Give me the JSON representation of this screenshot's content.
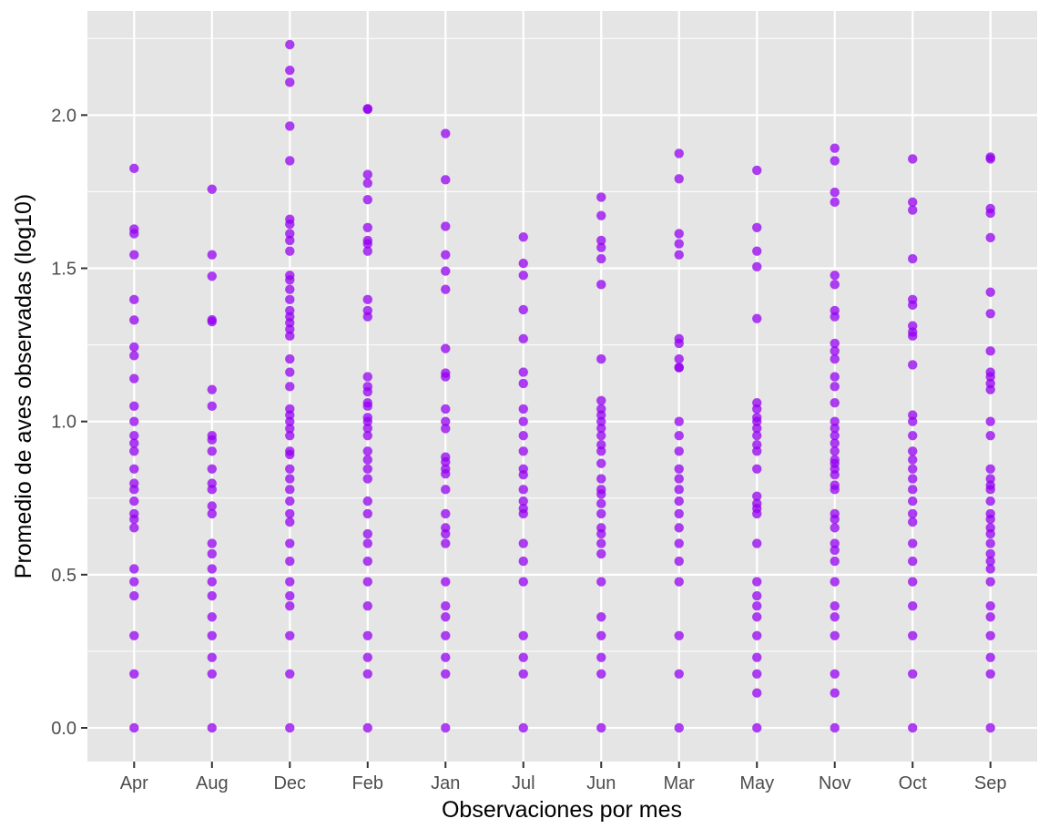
{
  "chart_data": {
    "type": "scatter",
    "title": "",
    "xlabel": "Observaciones por mes",
    "ylabel": "Promedio de aves observadas (log10)",
    "ylim": [
      -0.11,
      2.34
    ],
    "yticks": [
      "0.0",
      "0.5",
      "1.0",
      "1.5",
      "2.0"
    ],
    "categories": [
      "Apr",
      "Aug",
      "Dec",
      "Feb",
      "Jan",
      "Jul",
      "Jun",
      "Mar",
      "May",
      "Nov",
      "Oct",
      "Sep"
    ],
    "grid": true,
    "legend": "none",
    "colors": {
      "point": "#9400f0",
      "panel": "#e5e5e5",
      "grid": "#ffffff",
      "tick_text": "#4d4d4d"
    },
    "series": [
      {
        "points": [
          {
            "x": "Apr",
            "y": [
              0,
              0.176,
              0.301,
              0.431,
              0.477,
              0.519,
              0.653,
              0.681,
              0.699,
              0.74,
              0.778,
              0.798,
              0.845,
              0.903,
              0.929,
              0.954,
              1.0,
              1.05,
              1.14,
              1.215,
              1.243,
              1.331,
              1.398,
              1.544,
              1.613,
              1.628,
              1.826
            ]
          },
          {
            "x": "Aug",
            "y": [
              0,
              0.176,
              0.23,
              0.301,
              0.362,
              0.431,
              0.477,
              0.519,
              0.568,
              0.602,
              0.699,
              0.724,
              0.778,
              0.798,
              0.845,
              0.903,
              0.94,
              0.954,
              1.05,
              1.104,
              1.326,
              1.332,
              1.474,
              1.544,
              1.758
            ]
          },
          {
            "x": "Dec",
            "y": [
              0,
              0.176,
              0.301,
              0.398,
              0.431,
              0.477,
              0.544,
              0.602,
              0.672,
              0.699,
              0.74,
              0.778,
              0.813,
              0.845,
              0.892,
              0.903,
              0.954,
              0.977,
              1.0,
              1.021,
              1.041,
              1.114,
              1.161,
              1.204,
              1.279,
              1.301,
              1.322,
              1.342,
              1.362,
              1.398,
              1.431,
              1.462,
              1.477,
              1.556,
              1.591,
              1.613,
              1.644,
              1.66,
              1.851,
              1.964,
              2.107,
              2.146,
              2.23
            ]
          },
          {
            "x": "Feb",
            "y": [
              0,
              0.176,
              0.23,
              0.301,
              0.398,
              0.477,
              0.544,
              0.602,
              0.633,
              0.699,
              0.74,
              0.813,
              0.845,
              0.875,
              0.903,
              0.954,
              0.978,
              1.0,
              1.013,
              1.05,
              1.061,
              1.097,
              1.114,
              1.146,
              1.342,
              1.362,
              1.398,
              1.556,
              1.58,
              1.591,
              1.633,
              1.724,
              1.778,
              1.806,
              2.019,
              2.021
            ]
          },
          {
            "x": "Jan",
            "y": [
              0,
              0.176,
              0.23,
              0.301,
              0.362,
              0.398,
              0.477,
              0.602,
              0.633,
              0.653,
              0.699,
              0.778,
              0.829,
              0.845,
              0.868,
              0.884,
              0.977,
              1.0,
              1.041,
              1.146,
              1.158,
              1.238,
              1.431,
              1.491,
              1.544,
              1.637,
              1.789,
              1.94
            ]
          },
          {
            "x": "Jul",
            "y": [
              0,
              0.176,
              0.23,
              0.301,
              0.477,
              0.544,
              0.602,
              0.699,
              0.716,
              0.74,
              0.778,
              0.826,
              0.845,
              0.903,
              0.954,
              1.0,
              1.041,
              1.124,
              1.161,
              1.27,
              1.365,
              1.477,
              1.516,
              1.602
            ]
          },
          {
            "x": "Jun",
            "y": [
              0,
              0.176,
              0.23,
              0.301,
              0.362,
              0.477,
              0.568,
              0.602,
              0.633,
              0.653,
              0.699,
              0.732,
              0.763,
              0.778,
              0.813,
              0.863,
              0.903,
              0.924,
              0.954,
              0.978,
              1.0,
              1.021,
              1.041,
              1.068,
              1.204,
              1.447,
              1.531,
              1.568,
              1.591,
              1.672,
              1.732
            ]
          },
          {
            "x": "Mar",
            "y": [
              0,
              0.176,
              0.301,
              0.477,
              0.544,
              0.602,
              0.653,
              0.699,
              0.74,
              0.778,
              0.813,
              0.845,
              0.903,
              0.954,
              1.0,
              1.176,
              1.176,
              1.204,
              1.255,
              1.27,
              1.544,
              1.58,
              1.613,
              1.792,
              1.875
            ]
          },
          {
            "x": "May",
            "y": [
              0,
              0.114,
              0.176,
              0.23,
              0.301,
              0.362,
              0.398,
              0.431,
              0.477,
              0.602,
              0.699,
              0.716,
              0.732,
              0.756,
              0.845,
              0.903,
              0.924,
              0.954,
              0.978,
              1.0,
              1.013,
              1.041,
              1.061,
              1.336,
              1.505,
              1.556,
              1.633,
              1.82
            ]
          },
          {
            "x": "Nov",
            "y": [
              0,
              0.114,
              0.176,
              0.301,
              0.362,
              0.398,
              0.477,
              0.544,
              0.58,
              0.602,
              0.653,
              0.681,
              0.699,
              0.778,
              0.792,
              0.826,
              0.845,
              0.863,
              0.875,
              0.903,
              0.929,
              0.954,
              0.978,
              1.0,
              1.061,
              1.114,
              1.146,
              1.204,
              1.23,
              1.255,
              1.342,
              1.362,
              1.447,
              1.477,
              1.716,
              1.748,
              1.851,
              1.892
            ]
          },
          {
            "x": "Oct",
            "y": [
              0,
              0.176,
              0.301,
              0.398,
              0.477,
              0.544,
              0.602,
              0.672,
              0.699,
              0.74,
              0.778,
              0.813,
              0.845,
              0.875,
              0.903,
              0.954,
              1.0,
              1.021,
              1.185,
              1.279,
              1.292,
              1.312,
              1.38,
              1.398,
              1.531,
              1.69,
              1.716,
              1.857
            ]
          },
          {
            "x": "Sep",
            "y": [
              0,
              0.176,
              0.23,
              0.301,
              0.362,
              0.398,
              0.477,
              0.519,
              0.544,
              0.568,
              0.602,
              0.633,
              0.653,
              0.681,
              0.699,
              0.74,
              0.778,
              0.792,
              0.813,
              0.845,
              0.954,
              1.0,
              1.104,
              1.124,
              1.146,
              1.161,
              1.23,
              1.352,
              1.422,
              1.6,
              1.68,
              1.695,
              1.857,
              1.863
            ]
          }
        ]
      }
    ]
  }
}
